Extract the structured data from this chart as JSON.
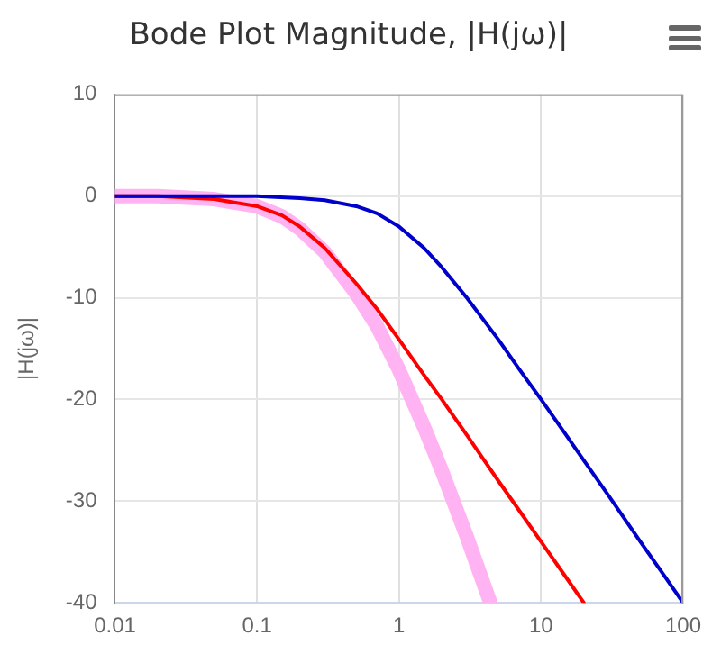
{
  "chart_data": {
    "type": "line",
    "title": "Bode Plot Magnitude, |H(jω)|",
    "ylabel": "|H(jω)|",
    "log": "x",
    "xlim": [
      0.01,
      100
    ],
    "xticks": [
      0.01,
      0.1,
      1,
      10,
      100
    ],
    "ylim": [
      -40,
      10
    ],
    "yticks": [
      -40,
      -30,
      -20,
      -10,
      0,
      10
    ],
    "grid": true,
    "legend": false,
    "marker": "none",
    "line_style": "solid",
    "series": [
      {
        "color": "#ffb3f2",
        "x": [
          0.01,
          0.02,
          0.05,
          0.1,
          0.15,
          0.2,
          0.3,
          0.5,
          0.7,
          1,
          1.5,
          2,
          3,
          4.4
        ],
        "values": [
          0,
          0,
          -0.3,
          -1.0,
          -2.0,
          -3.2,
          -5.5,
          -9.6,
          -12.8,
          -17.1,
          -22.7,
          -27.0,
          -33.5,
          -40.0
        ]
      },
      {
        "color": "#ff0000",
        "x": [
          0.01,
          0.02,
          0.05,
          0.1,
          0.15,
          0.2,
          0.3,
          0.5,
          0.7,
          1,
          1.5,
          2,
          3,
          5,
          7,
          10,
          15,
          20
        ],
        "values": [
          0,
          0,
          -0.3,
          -1.0,
          -1.9,
          -3.0,
          -5.1,
          -8.6,
          -11.1,
          -14.1,
          -17.6,
          -20.0,
          -23.5,
          -28.0,
          -30.9,
          -34.0,
          -37.5,
          -40.0
        ]
      },
      {
        "color": "#0000cc",
        "x": [
          0.01,
          0.02,
          0.05,
          0.1,
          0.2,
          0.3,
          0.5,
          0.7,
          1,
          1.5,
          2,
          3,
          5,
          7,
          10,
          15,
          20,
          30,
          50,
          70,
          100
        ],
        "values": [
          0,
          0,
          0,
          0,
          -0.2,
          -0.4,
          -1.0,
          -1.7,
          -3.0,
          -5.1,
          -7.0,
          -10.0,
          -14.1,
          -17.0,
          -20.0,
          -23.5,
          -26.0,
          -29.5,
          -34.0,
          -36.9,
          -40.0
        ]
      }
    ]
  }
}
